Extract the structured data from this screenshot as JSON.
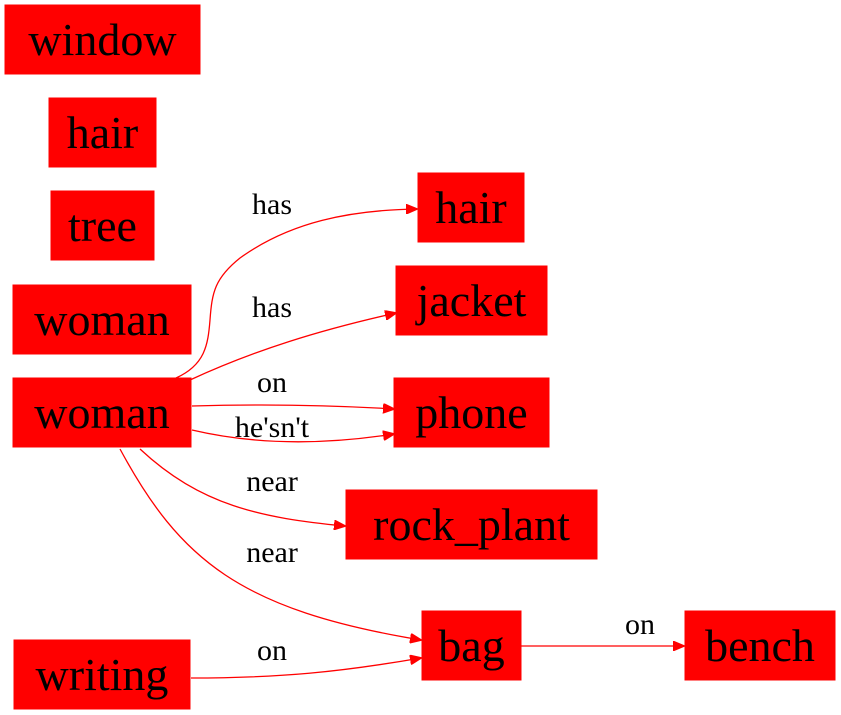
{
  "colors": {
    "node_fill": "#ff0000",
    "edge": "#ff0000",
    "text": "#000000",
    "background": "#ffffff"
  },
  "nodes": {
    "window": "window",
    "hair_left": "hair",
    "tree": "tree",
    "woman_top": "woman",
    "woman_main": "woman",
    "writing": "writing",
    "hair_right": "hair",
    "jacket": "jacket",
    "phone": "phone",
    "rock_plant": "rock_plant",
    "bag": "bag",
    "bench": "bench"
  },
  "edges": {
    "woman_has_hair": "has",
    "woman_has_jacket": "has",
    "woman_on_phone": "on",
    "woman_hesnt_phone": "he'sn't",
    "woman_near_rock_plant": "near",
    "woman_near_bag": "near",
    "writing_on_bag": "on",
    "bag_on_bench": "on"
  }
}
